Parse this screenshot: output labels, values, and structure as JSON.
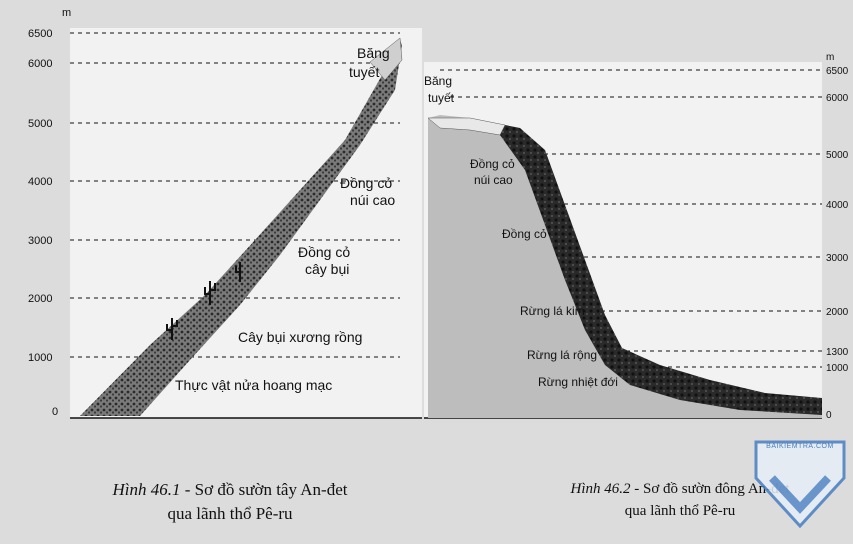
{
  "left_diagram": {
    "unit": "m",
    "ticks": [
      "6500",
      "6000",
      "5000",
      "4000",
      "3000",
      "2000",
      "1000",
      "0"
    ],
    "zones": [
      "Băng tuyết",
      "Đồng cỏ núi cao",
      "Đồng cỏ cây bụi",
      "Cây bụi xương rồng",
      "Thực vật nửa hoang mạc"
    ],
    "caption_fig": "Hình 46.1",
    "caption_text": " - Sơ đồ sườn tây An-đet",
    "caption_line2": "qua lãnh thổ Pê-ru"
  },
  "right_diagram": {
    "unit": "m",
    "ticks": [
      "6500",
      "6000",
      "5000",
      "4000",
      "3000",
      "2000",
      "1300",
      "1000",
      "0"
    ],
    "zones": [
      "Băng tuyết",
      "Đồng cỏ núi cao",
      "Đồng cỏ",
      "Rừng lá kim",
      "Rừng lá rộng",
      "Rừng nhiệt đới"
    ],
    "caption_fig": "Hình 46.2",
    "caption_text": " - Sơ đồ sườn đông An-đet",
    "caption_line2": "qua lãnh thổ Pê-ru"
  },
  "watermark": {
    "text": "BAIKIEMTRA.COM",
    "color": "#4a7fc0"
  }
}
